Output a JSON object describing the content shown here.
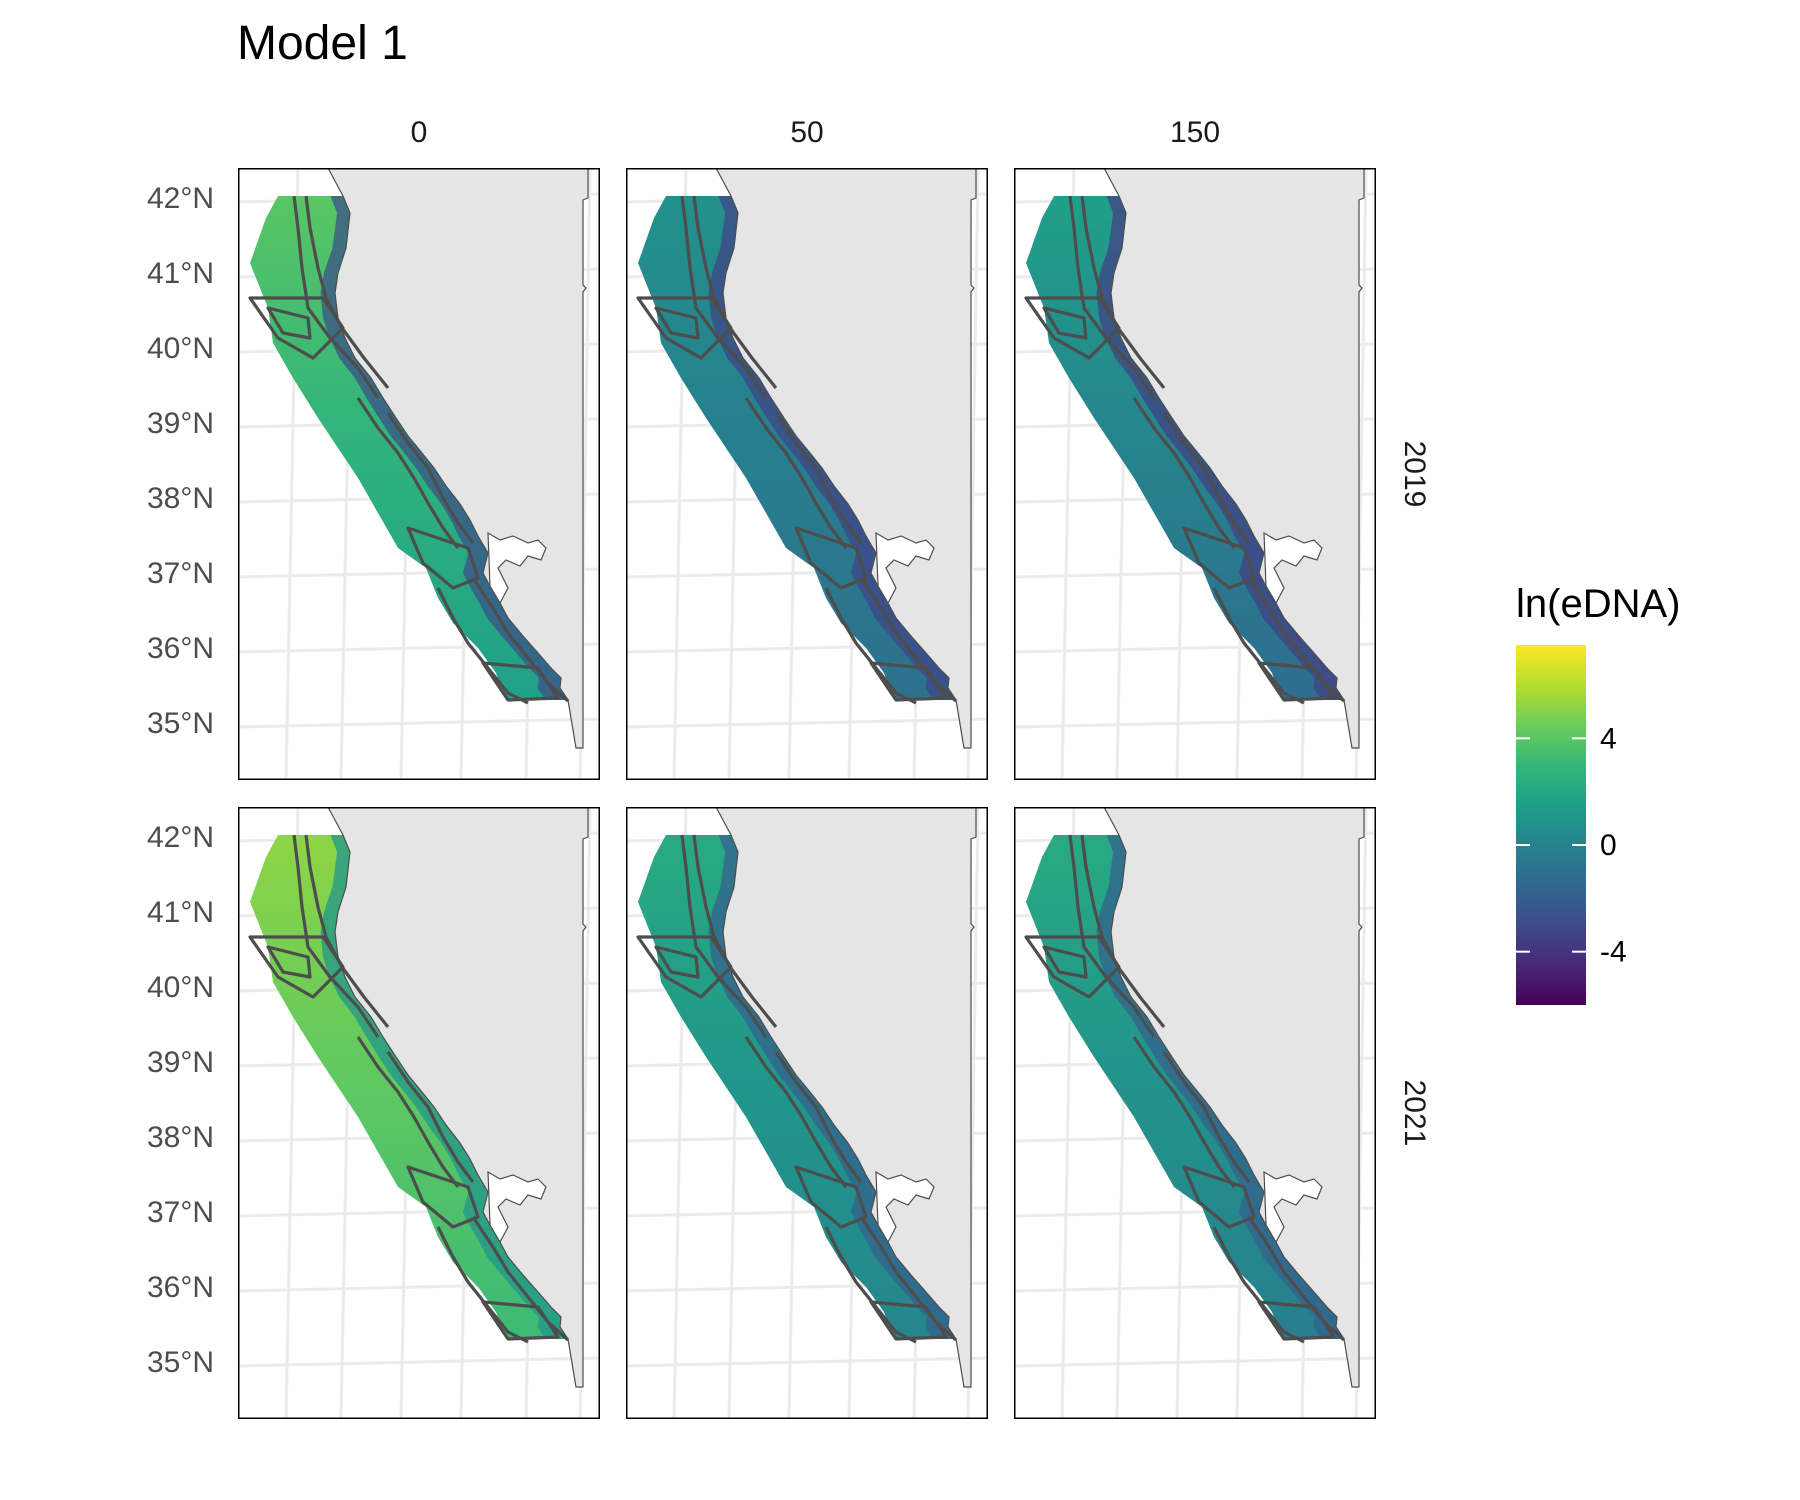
{
  "title": "Model 1",
  "colors": {
    "land": "#e5e5e5",
    "outline": "#4d4d4d",
    "grid": "#ebebeb",
    "panel_border": "#000000",
    "viridis": [
      "#440154",
      "#482878",
      "#3e4a89",
      "#31688e",
      "#26828e",
      "#1f9e89",
      "#35b779",
      "#6dcd59",
      "#b4de2c",
      "#fde725"
    ]
  },
  "chart_data": {
    "type": "heatmap",
    "title": "Model 1",
    "facet_columns": [
      "0",
      "50",
      "150"
    ],
    "facet_rows": [
      "2019",
      "2021"
    ],
    "lat_ticks": [
      "42°N",
      "41°N",
      "40°N",
      "39°N",
      "38°N",
      "37°N",
      "36°N",
      "35°N"
    ],
    "lat_values": [
      42,
      41,
      40,
      39,
      38,
      37,
      36,
      35
    ],
    "ylim": [
      34.6,
      42.2
    ],
    "legend": {
      "title": "ln(eDNA)",
      "ticks": [
        "4",
        "0",
        "-4"
      ],
      "tick_values": [
        4,
        0,
        -4
      ],
      "range": [
        -6,
        7.5
      ],
      "position": "right"
    },
    "panels": [
      {
        "row": "2019",
        "col": "0",
        "north": 4.0,
        "south": 1.6,
        "inshore": -2.6,
        "level_range": "approx -3 to 5"
      },
      {
        "row": "2019",
        "col": "50",
        "north": 0.8,
        "south": -1.0,
        "inshore": -3.2,
        "level_range": "approx -3.5 to 1"
      },
      {
        "row": "2019",
        "col": "150",
        "north": 1.6,
        "south": -1.2,
        "inshore": -3.4,
        "level_range": "approx -4 to 2"
      },
      {
        "row": "2021",
        "col": "0",
        "north": 5.2,
        "south": 3.2,
        "inshore": 1.0,
        "level_range": "approx 0 to 6"
      },
      {
        "row": "2021",
        "col": "50",
        "north": 2.2,
        "south": 0.2,
        "inshore": -1.8,
        "level_range": "approx -2 to 3"
      },
      {
        "row": "2021",
        "col": "150",
        "north": 2.2,
        "south": -0.2,
        "inshore": -1.8,
        "level_range": "approx -2 to 3"
      }
    ]
  }
}
